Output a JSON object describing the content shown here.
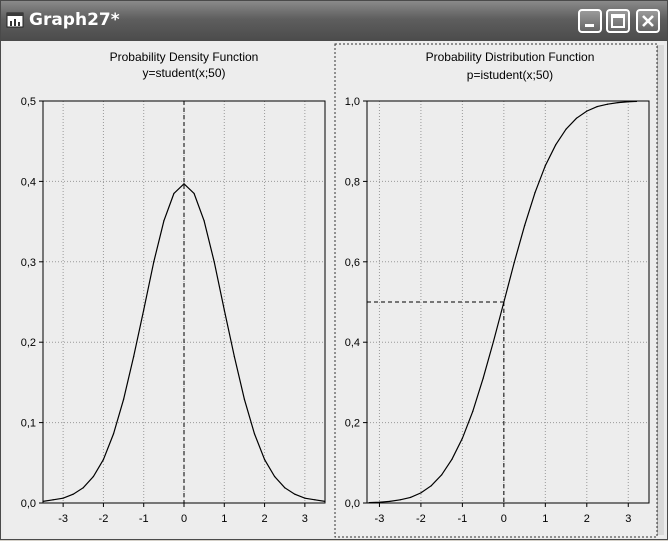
{
  "window": {
    "title": "Graph27*",
    "icon": "graph-window-icon"
  },
  "controls": {
    "minimize": "minimize-icon",
    "maximize": "maximize-icon",
    "close": "close-icon"
  },
  "left_chart": {
    "title": "Probability  Density  Function",
    "subtitle": "y=student(x;50)"
  },
  "right_chart": {
    "title": "Probability  Distribution  Function",
    "subtitle": "p=istudent(x;50)"
  },
  "colors": {
    "titlebar": "#5e5e5e",
    "background": "#ededed",
    "grid": "#9a9a9a",
    "line": "#000000"
  },
  "chart_data": [
    {
      "type": "line",
      "title": "Probability  Density  Function",
      "subtitle": "y=student(x;50)",
      "x": [
        -3.5,
        -3.25,
        -3,
        -2.75,
        -2.5,
        -2.25,
        -2,
        -1.75,
        -1.5,
        -1.25,
        -1,
        -0.75,
        -0.5,
        -0.25,
        0,
        0.25,
        0.5,
        0.75,
        1,
        1.25,
        1.5,
        1.75,
        2,
        2.25,
        2.5,
        2.75,
        3,
        3.25,
        3.5
      ],
      "y": [
        0.002,
        0.004,
        0.006,
        0.011,
        0.019,
        0.033,
        0.054,
        0.086,
        0.129,
        0.182,
        0.24,
        0.3,
        0.351,
        0.385,
        0.397,
        0.385,
        0.351,
        0.3,
        0.24,
        0.182,
        0.129,
        0.086,
        0.054,
        0.033,
        0.019,
        0.011,
        0.006,
        0.004,
        0.002
      ],
      "xlim": [
        -3.5,
        3.5
      ],
      "ylim": [
        0,
        0.5
      ],
      "xticks": [
        -3,
        -2,
        -1,
        0,
        1,
        2,
        3
      ],
      "yticks": [
        0.0,
        0.1,
        0.2,
        0.3,
        0.4,
        0.5
      ],
      "xtick_labels": [
        "-3",
        "-2",
        "-1",
        "0",
        "1",
        "2",
        "3"
      ],
      "ytick_labels": [
        "0,0",
        "0,1",
        "0,2",
        "0,3",
        "0,4",
        "0,5"
      ],
      "grid": true,
      "reference_lines": {
        "vertical_at_x": 0
      }
    },
    {
      "type": "line",
      "title": "Probability  Distribution  Function",
      "subtitle": "p=istudent(x;50)",
      "x": [
        -3.25,
        -3,
        -2.75,
        -2.5,
        -2.25,
        -2,
        -1.75,
        -1.5,
        -1.25,
        -1,
        -0.75,
        -0.5,
        -0.25,
        0,
        0.25,
        0.5,
        0.75,
        1,
        1.25,
        1.5,
        1.75,
        2,
        2.25,
        2.5,
        2.75,
        3,
        3.2
      ],
      "y": [
        0.001,
        0.002,
        0.004,
        0.008,
        0.014,
        0.025,
        0.043,
        0.07,
        0.109,
        0.161,
        0.228,
        0.31,
        0.402,
        0.5,
        0.598,
        0.69,
        0.772,
        0.839,
        0.891,
        0.93,
        0.957,
        0.975,
        0.986,
        0.992,
        0.996,
        0.998,
        0.999
      ],
      "xlim": [
        -3.3,
        3.5
      ],
      "ylim": [
        0,
        1.0
      ],
      "xticks": [
        -3,
        -2,
        -1,
        0,
        1,
        2,
        3
      ],
      "yticks": [
        0.0,
        0.2,
        0.4,
        0.6,
        0.8,
        1.0
      ],
      "xtick_labels": [
        "-3",
        "-2",
        "-1",
        "0",
        "1",
        "2",
        "3"
      ],
      "ytick_labels": [
        "0,0",
        "0,2",
        "0,4",
        "0,6",
        "0,8",
        "1,0"
      ],
      "grid": true,
      "reference_lines": {
        "vertical_at_x": 0,
        "horizontal_at_y": 0.5
      }
    }
  ]
}
